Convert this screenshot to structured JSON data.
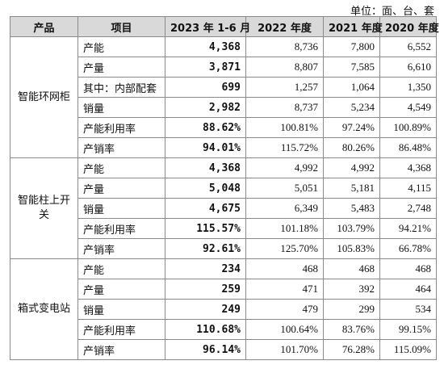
{
  "unit_label": "单位：面、台、套",
  "headers": [
    "产品",
    "项目",
    "2023 年 1-6 月",
    "2022 年度",
    "2021 年度",
    "2020 年度"
  ],
  "groups": [
    {
      "product": "智能环网柜",
      "rows": [
        {
          "item": "产能",
          "h1": "4,368",
          "y2022": "8,736",
          "y2021": "7,800",
          "y2020": "6,552"
        },
        {
          "item": "产量",
          "h1": "3,871",
          "y2022": "8,807",
          "y2021": "7,585",
          "y2020": "6,610"
        },
        {
          "item": "其中：内部配套",
          "h1": "699",
          "y2022": "1,257",
          "y2021": "1,064",
          "y2020": "1,350"
        },
        {
          "item": "销量",
          "h1": "2,982",
          "y2022": "8,737",
          "y2021": "5,234",
          "y2020": "4,549"
        },
        {
          "item": "产能利用率",
          "h1": "88.62%",
          "y2022": "100.81%",
          "y2021": "97.24%",
          "y2020": "100.89%"
        },
        {
          "item": "产销率",
          "h1": "94.01%",
          "y2022": "115.72%",
          "y2021": "80.26%",
          "y2020": "86.48%"
        }
      ]
    },
    {
      "product": "智能柱上开关",
      "rows": [
        {
          "item": "产能",
          "h1": "4,368",
          "y2022": "4,992",
          "y2021": "4,992",
          "y2020": "4,368"
        },
        {
          "item": "产量",
          "h1": "5,048",
          "y2022": "5,051",
          "y2021": "5,181",
          "y2020": "4,115"
        },
        {
          "item": "销量",
          "h1": "4,675",
          "y2022": "6,349",
          "y2021": "5,483",
          "y2020": "2,748"
        },
        {
          "item": "产能利用率",
          "h1": "115.57%",
          "y2022": "101.18%",
          "y2021": "103.79%",
          "y2020": "94.21%"
        },
        {
          "item": "产销率",
          "h1": "92.61%",
          "y2022": "125.70%",
          "y2021": "105.83%",
          "y2020": "66.78%"
        }
      ]
    },
    {
      "product": "箱式变电站",
      "rows": [
        {
          "item": "产能",
          "h1": "234",
          "y2022": "468",
          "y2021": "468",
          "y2020": "468"
        },
        {
          "item": "产量",
          "h1": "259",
          "y2022": "471",
          "y2021": "392",
          "y2020": "464"
        },
        {
          "item": "销量",
          "h1": "249",
          "y2022": "479",
          "y2021": "299",
          "y2020": "534"
        },
        {
          "item": "产能利用率",
          "h1": "110.68%",
          "y2022": "100.64%",
          "y2021": "83.76%",
          "y2020": "99.15%"
        },
        {
          "item": "产销率",
          "h1": "96.14%",
          "y2022": "101.70%",
          "y2021": "76.28%",
          "y2020": "115.09%"
        }
      ]
    }
  ]
}
